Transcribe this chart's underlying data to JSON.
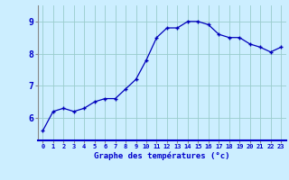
{
  "x": [
    0,
    1,
    2,
    3,
    4,
    5,
    6,
    7,
    8,
    9,
    10,
    11,
    12,
    13,
    14,
    15,
    16,
    17,
    18,
    19,
    20,
    21,
    22,
    23
  ],
  "y": [
    5.6,
    6.2,
    6.3,
    6.2,
    6.3,
    6.5,
    6.6,
    6.6,
    6.9,
    7.2,
    7.8,
    8.5,
    8.8,
    8.8,
    9.0,
    9.0,
    8.9,
    8.6,
    8.5,
    8.5,
    8.3,
    8.2,
    8.05,
    8.2
  ],
  "line_color": "#0000bb",
  "marker_color": "#0000bb",
  "bg_color": "#cceeff",
  "grid_color": "#99cccc",
  "axis_label_color": "#0000cc",
  "tick_color": "#0000cc",
  "xlabel": "Graphe des températures (°c)",
  "ylabel_ticks": [
    6,
    7,
    8,
    9
  ],
  "xlim": [
    -0.5,
    23.5
  ],
  "ylim": [
    5.3,
    9.5
  ]
}
